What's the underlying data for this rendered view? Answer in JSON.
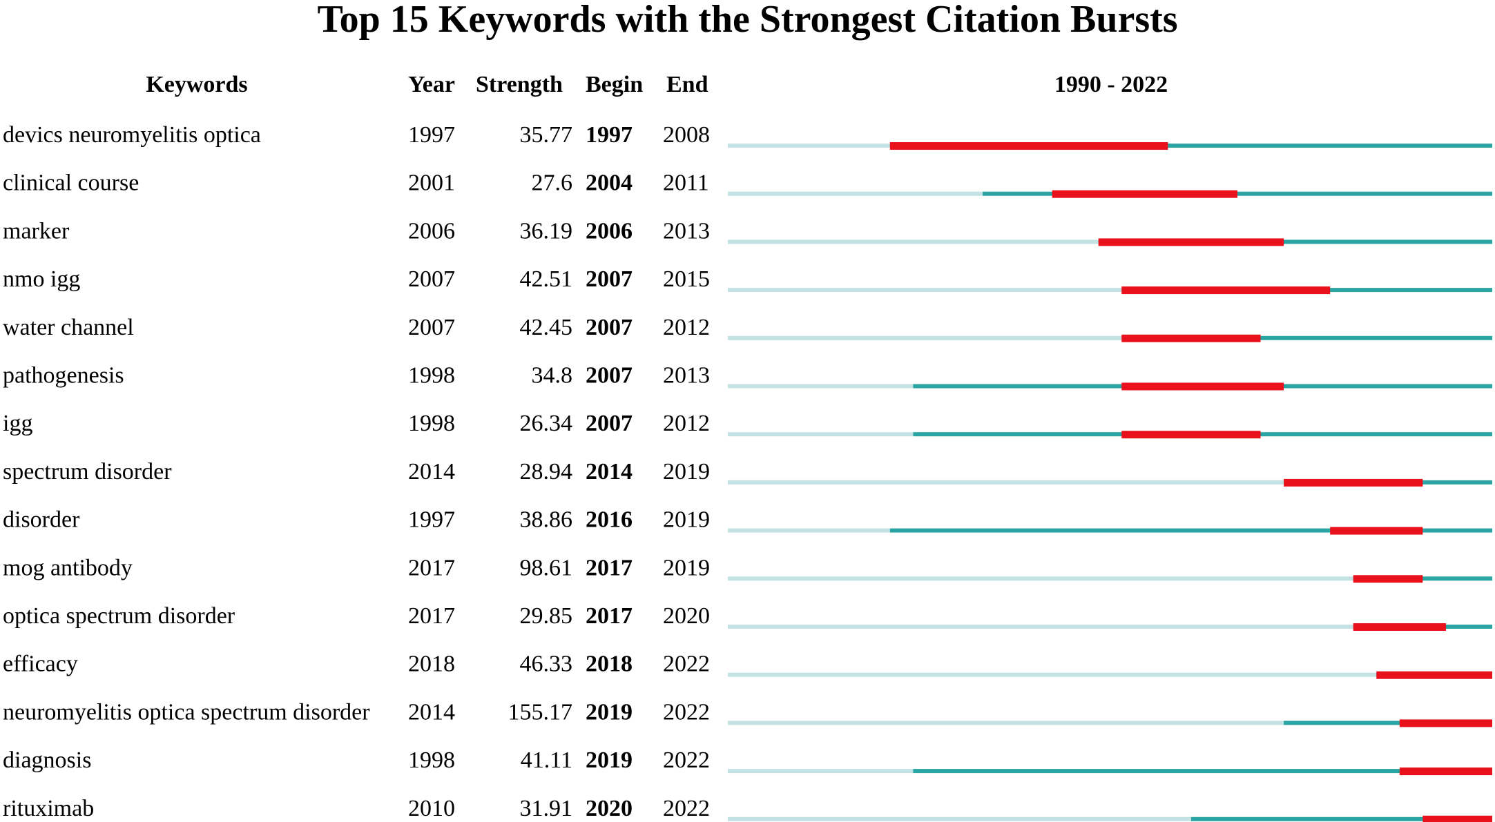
{
  "chart_data": {
    "type": "table",
    "title": "Top 15 Keywords with the Strongest Citation Bursts",
    "columns": [
      "Keywords",
      "Year",
      "Strength",
      "Begin",
      "End"
    ],
    "range_label": "1990 - 2022",
    "timeline": {
      "start": 1990,
      "end": 2022
    },
    "colors": {
      "burst": "#e8111c",
      "active": "#2aa5a4",
      "inactive": "#c3e2e3"
    },
    "rows": [
      {
        "keyword": "devics neuromyelitis optica",
        "year": 1997,
        "strength": "35.77",
        "begin": 1997,
        "end": 2008
      },
      {
        "keyword": "clinical course",
        "year": 2001,
        "strength": "27.6",
        "begin": 2004,
        "end": 2011
      },
      {
        "keyword": "marker",
        "year": 2006,
        "strength": "36.19",
        "begin": 2006,
        "end": 2013
      },
      {
        "keyword": "nmo igg",
        "year": 2007,
        "strength": "42.51",
        "begin": 2007,
        "end": 2015
      },
      {
        "keyword": "water channel",
        "year": 2007,
        "strength": "42.45",
        "begin": 2007,
        "end": 2012
      },
      {
        "keyword": "pathogenesis",
        "year": 1998,
        "strength": "34.8",
        "begin": 2007,
        "end": 2013
      },
      {
        "keyword": "igg",
        "year": 1998,
        "strength": "26.34",
        "begin": 2007,
        "end": 2012
      },
      {
        "keyword": "spectrum disorder",
        "year": 2014,
        "strength": "28.94",
        "begin": 2014,
        "end": 2019
      },
      {
        "keyword": "disorder",
        "year": 1997,
        "strength": "38.86",
        "begin": 2016,
        "end": 2019
      },
      {
        "keyword": "mog antibody",
        "year": 2017,
        "strength": "98.61",
        "begin": 2017,
        "end": 2019
      },
      {
        "keyword": "optica spectrum disorder",
        "year": 2017,
        "strength": "29.85",
        "begin": 2017,
        "end": 2020
      },
      {
        "keyword": "efficacy",
        "year": 2018,
        "strength": "46.33",
        "begin": 2018,
        "end": 2022
      },
      {
        "keyword": "neuromyelitis optica spectrum disorder",
        "year": 2014,
        "strength": "155.17",
        "begin": 2019,
        "end": 2022
      },
      {
        "keyword": "diagnosis",
        "year": 1998,
        "strength": "41.11",
        "begin": 2019,
        "end": 2022
      },
      {
        "keyword": "rituximab",
        "year": 2010,
        "strength": "31.91",
        "begin": 2020,
        "end": 2022
      }
    ]
  }
}
